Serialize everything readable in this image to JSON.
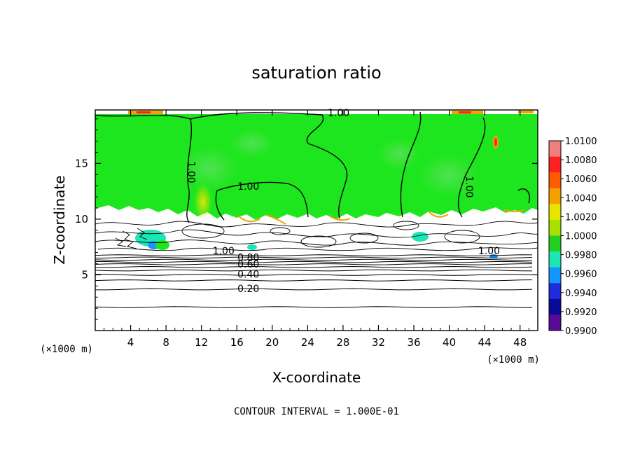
{
  "chart_data": {
    "type": "heatmap",
    "title": "saturation ratio",
    "xlabel": "X-coordinate",
    "ylabel": "Z-coordinate",
    "x_unit_left": "(×1000 m)",
    "x_unit_right": "(×1000 m)",
    "footer": "CONTOUR INTERVAL = 1.000E-01",
    "xlim": [
      0,
      50
    ],
    "ylim": [
      0,
      19.8
    ],
    "x_ticks": [
      4,
      8,
      12,
      16,
      20,
      24,
      28,
      32,
      36,
      40,
      44,
      48
    ],
    "y_ticks": [
      5,
      10,
      15
    ],
    "colorbar": {
      "labels": [
        "1.0100",
        "1.0080",
        "1.0060",
        "1.0040",
        "1.0020",
        "1.0000",
        "0.9980",
        "0.9960",
        "0.9940",
        "0.9920",
        "0.9900"
      ],
      "colors": [
        "#f08080",
        "#ff2020",
        "#ff5a00",
        "#f5a000",
        "#e6e600",
        "#a8e000",
        "#22d022",
        "#1ce6b4",
        "#1496ff",
        "#1e2cdc",
        "#0a0a9a",
        "#5a0a96"
      ]
    },
    "contour_labels": [
      {
        "text": "1.00",
        "x": 27.5,
        "z": 19.5
      },
      {
        "text": "1.00",
        "x": 10.8,
        "z": 14.2
      },
      {
        "text": "1.00",
        "x": 17.3,
        "z": 12.9
      },
      {
        "text": "1.00",
        "x": 42.2,
        "z": 12.9
      },
      {
        "text": "1.00",
        "x": 14.5,
        "z": 7.1
      },
      {
        "text": "1.00",
        "x": 44.5,
        "z": 7.1
      },
      {
        "text": "0.80",
        "x": 17.3,
        "z": 6.5
      },
      {
        "text": "0.60",
        "x": 17.3,
        "z": 5.9
      },
      {
        "text": "0.40",
        "x": 17.3,
        "z": 5.0
      },
      {
        "text": "0.20",
        "x": 17.3,
        "z": 3.7
      }
    ],
    "horizontal_contours_z": [
      2.1,
      3.7,
      4.5,
      5.0,
      5.4,
      5.7,
      5.95,
      6.15,
      6.35,
      6.55,
      6.75
    ],
    "cloud_base_z": 11.3,
    "colors": {
      "field": "#1ee61e",
      "accent_yellow": "#e6e600",
      "accent_orange": "#f5a000",
      "accent_red": "#ff2020",
      "accent_cyan": "#1ce6b4"
    }
  }
}
